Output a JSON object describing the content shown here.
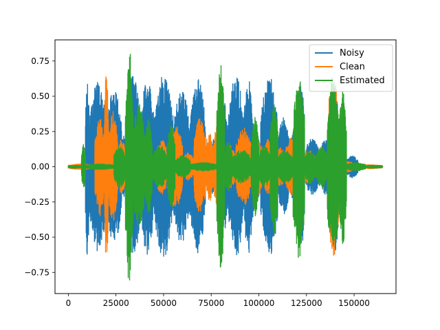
{
  "chart_data": {
    "type": "line",
    "title": "",
    "xlabel": "",
    "ylabel": "",
    "xlim": [
      -7000,
      172000
    ],
    "ylim": [
      -0.9,
      0.9
    ],
    "xticks": [
      0,
      25000,
      50000,
      75000,
      100000,
      125000,
      150000
    ],
    "xtick_labels": [
      "0",
      "25000",
      "50000",
      "75000",
      "100000",
      "125000",
      "150000"
    ],
    "yticks": [
      -0.75,
      -0.5,
      -0.25,
      0.0,
      0.25,
      0.5,
      0.75
    ],
    "ytick_labels": [
      "−0.75",
      "−0.50",
      "−0.25",
      "0.00",
      "0.25",
      "0.50",
      "0.75"
    ],
    "grid": false,
    "legend_position": "upper right",
    "series": [
      {
        "name": "Noisy",
        "color": "#1f77b4",
        "segments": [
          {
            "start": 0,
            "end": 7000,
            "amp": 0.01
          },
          {
            "start": 7000,
            "end": 9000,
            "amp": 0.12
          },
          {
            "start": 9000,
            "end": 11000,
            "amp": 0.65
          },
          {
            "start": 11000,
            "end": 20000,
            "amp": 0.6
          },
          {
            "start": 20000,
            "end": 28000,
            "amp": 0.55
          },
          {
            "start": 28000,
            "end": 30000,
            "amp": 0.25
          },
          {
            "start": 30000,
            "end": 38000,
            "amp": 0.65
          },
          {
            "start": 38000,
            "end": 45000,
            "amp": 0.63
          },
          {
            "start": 45000,
            "end": 55000,
            "amp": 0.65
          },
          {
            "start": 55000,
            "end": 64000,
            "amp": 0.55
          },
          {
            "start": 64000,
            "end": 72000,
            "amp": 0.62
          },
          {
            "start": 72000,
            "end": 80000,
            "amp": 0.2
          },
          {
            "start": 80000,
            "end": 84000,
            "amp": 0.45
          },
          {
            "start": 84000,
            "end": 92000,
            "amp": 0.65
          },
          {
            "start": 92000,
            "end": 97000,
            "amp": 0.62
          },
          {
            "start": 97000,
            "end": 101000,
            "amp": 0.25
          },
          {
            "start": 101000,
            "end": 110000,
            "amp": 0.64
          },
          {
            "start": 110000,
            "end": 116000,
            "amp": 0.35
          },
          {
            "start": 116000,
            "end": 120000,
            "amp": 0.25
          },
          {
            "start": 120000,
            "end": 124000,
            "amp": 0.64
          },
          {
            "start": 124000,
            "end": 132000,
            "amp": 0.2
          },
          {
            "start": 132000,
            "end": 138000,
            "amp": 0.2
          },
          {
            "start": 138000,
            "end": 142000,
            "amp": 0.62
          },
          {
            "start": 142000,
            "end": 146000,
            "amp": 0.2
          },
          {
            "start": 146000,
            "end": 152000,
            "amp": 0.08
          },
          {
            "start": 152000,
            "end": 165000,
            "amp": 0.01
          }
        ]
      },
      {
        "name": "Clean",
        "color": "#ff7f0e",
        "segments": [
          {
            "start": 0,
            "end": 14000,
            "amp": 0.02
          },
          {
            "start": 14000,
            "end": 19000,
            "amp": 0.35
          },
          {
            "start": 19000,
            "end": 21000,
            "amp": 0.71
          },
          {
            "start": 21000,
            "end": 26000,
            "amp": 0.4
          },
          {
            "start": 26000,
            "end": 30000,
            "amp": 0.2
          },
          {
            "start": 30000,
            "end": 46000,
            "amp": 0.05
          },
          {
            "start": 46000,
            "end": 52000,
            "amp": 0.2
          },
          {
            "start": 52000,
            "end": 60000,
            "amp": 0.3
          },
          {
            "start": 60000,
            "end": 66000,
            "amp": 0.1
          },
          {
            "start": 66000,
            "end": 72000,
            "amp": 0.36
          },
          {
            "start": 72000,
            "end": 76000,
            "amp": 0.25
          },
          {
            "start": 76000,
            "end": 82000,
            "amp": 0.32
          },
          {
            "start": 82000,
            "end": 88000,
            "amp": 0.15
          },
          {
            "start": 88000,
            "end": 96000,
            "amp": 0.28
          },
          {
            "start": 96000,
            "end": 102000,
            "amp": 0.22
          },
          {
            "start": 102000,
            "end": 108000,
            "amp": 0.2
          },
          {
            "start": 108000,
            "end": 114000,
            "amp": 0.14
          },
          {
            "start": 114000,
            "end": 122000,
            "amp": 0.22
          },
          {
            "start": 122000,
            "end": 130000,
            "amp": 0.12
          },
          {
            "start": 130000,
            "end": 136000,
            "amp": 0.05
          },
          {
            "start": 136000,
            "end": 142000,
            "amp": 0.65
          },
          {
            "start": 142000,
            "end": 150000,
            "amp": 0.04
          },
          {
            "start": 150000,
            "end": 165000,
            "amp": 0.015
          }
        ]
      },
      {
        "name": "Estimated",
        "color": "#2ca02c",
        "segments": [
          {
            "start": 0,
            "end": 7000,
            "amp": 0.01
          },
          {
            "start": 7000,
            "end": 9000,
            "amp": 0.16
          },
          {
            "start": 9000,
            "end": 24000,
            "amp": 0.02
          },
          {
            "start": 24000,
            "end": 30000,
            "amp": 0.15
          },
          {
            "start": 30000,
            "end": 34000,
            "amp": 0.83
          },
          {
            "start": 34000,
            "end": 40000,
            "amp": 0.45
          },
          {
            "start": 40000,
            "end": 44000,
            "amp": 0.35
          },
          {
            "start": 44000,
            "end": 52000,
            "amp": 0.15
          },
          {
            "start": 52000,
            "end": 56000,
            "amp": 0.3
          },
          {
            "start": 56000,
            "end": 64000,
            "amp": 0.08
          },
          {
            "start": 64000,
            "end": 78000,
            "amp": 0.03
          },
          {
            "start": 78000,
            "end": 82000,
            "amp": 0.73
          },
          {
            "start": 82000,
            "end": 86000,
            "amp": 0.18
          },
          {
            "start": 86000,
            "end": 96000,
            "amp": 0.12
          },
          {
            "start": 96000,
            "end": 100000,
            "amp": 0.35
          },
          {
            "start": 100000,
            "end": 106000,
            "amp": 0.15
          },
          {
            "start": 106000,
            "end": 110000,
            "amp": 0.5
          },
          {
            "start": 110000,
            "end": 118000,
            "amp": 0.12
          },
          {
            "start": 118000,
            "end": 124000,
            "amp": 0.66
          },
          {
            "start": 124000,
            "end": 130000,
            "amp": 0.12
          },
          {
            "start": 130000,
            "end": 136000,
            "amp": 0.15
          },
          {
            "start": 136000,
            "end": 142000,
            "amp": 0.65
          },
          {
            "start": 142000,
            "end": 146000,
            "amp": 0.55
          },
          {
            "start": 146000,
            "end": 156000,
            "amp": 0.03
          },
          {
            "start": 156000,
            "end": 165000,
            "amp": 0.01
          }
        ]
      }
    ]
  }
}
